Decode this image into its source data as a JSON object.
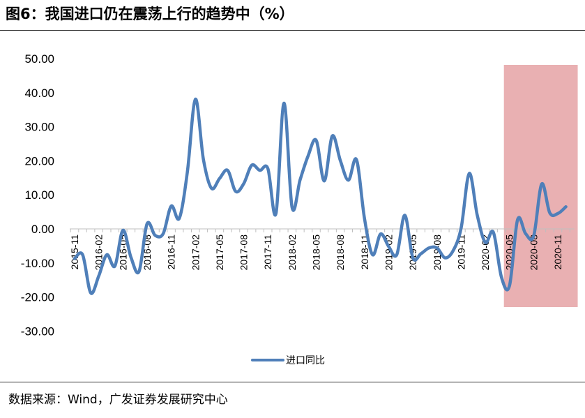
{
  "figure": {
    "title": "图6：我国进口仍在震荡上行的趋势中（%）",
    "source": "数据来源：Wind，广发证券发展研究中心"
  },
  "colors": {
    "series_line": "#4f7fb9",
    "highlight": "#e9b0b2",
    "axis": "#bfbfbf",
    "rule": "#333333"
  },
  "chart_data": {
    "type": "line",
    "title": "",
    "xlabel": "",
    "ylabel": "",
    "ylim": [
      -30,
      50
    ],
    "yticks": [
      "50.00",
      "40.00",
      "30.00",
      "20.00",
      "10.00",
      "0.00",
      "-10.00",
      "-20.00",
      "-30.00"
    ],
    "x": [
      "2015-11",
      "2015-12",
      "2016-01",
      "2016-02",
      "2016-03",
      "2016-04",
      "2016-05",
      "2016-06",
      "2016-07",
      "2016-08",
      "2016-09",
      "2016-10",
      "2016-11",
      "2016-12",
      "2017-01",
      "2017-02",
      "2017-03",
      "2017-04",
      "2017-05",
      "2017-06",
      "2017-07",
      "2017-08",
      "2017-09",
      "2017-10",
      "2017-11",
      "2017-12",
      "2018-01",
      "2018-02",
      "2018-03",
      "2018-04",
      "2018-05",
      "2018-06",
      "2018-07",
      "2018-08",
      "2018-09",
      "2018-10",
      "2018-11",
      "2018-12",
      "2019-01",
      "2019-02",
      "2019-03",
      "2019-04",
      "2019-05",
      "2019-06",
      "2019-07",
      "2019-08",
      "2019-09",
      "2019-10",
      "2019-11",
      "2019-12",
      "2020-01",
      "2020-02",
      "2020-03",
      "2020-04",
      "2020-05",
      "2020-06",
      "2020-07",
      "2020-08",
      "2020-09",
      "2020-10",
      "2020-11",
      "2020-12"
    ],
    "xtick_labels": [
      "2015-11",
      "2016-02",
      "2016-05",
      "2016-08",
      "2016-11",
      "2017-02",
      "2017-05",
      "2017-08",
      "2017-11",
      "2018-02",
      "2018-05",
      "2018-08",
      "2018-11",
      "2019-02",
      "2019-05",
      "2019-08",
      "2019-11",
      "2020-02",
      "2020-05",
      "2020-08",
      "2020-11"
    ],
    "series": [
      {
        "name": "进口同比",
        "values": [
          -8.7,
          -7.6,
          -18.8,
          -13.8,
          -7.6,
          -10.9,
          -0.4,
          -8.4,
          -12.5,
          1.5,
          -1.9,
          -1.4,
          6.7,
          3.1,
          16.7,
          38.1,
          20.3,
          11.9,
          14.8,
          17.2,
          11.0,
          13.3,
          18.7,
          17.2,
          17.7,
          4.5,
          36.9,
          6.3,
          14.4,
          21.5,
          26.0,
          14.1,
          27.3,
          20.0,
          14.3,
          20.3,
          3.0,
          -7.6,
          -1.5,
          -5.2,
          -7.6,
          4.0,
          -8.5,
          -7.3,
          -5.6,
          -5.6,
          -8.5,
          -6.4,
          0.3,
          16.3,
          4.0,
          -4.0,
          -1.0,
          -14.2,
          -16.7,
          2.7,
          -1.4,
          -2.1,
          13.2,
          4.7,
          4.5,
          6.5
        ]
      }
    ],
    "highlight_range": [
      "2020-05",
      "2020-12"
    ],
    "grid": false,
    "legend_position": "bottom-center"
  }
}
